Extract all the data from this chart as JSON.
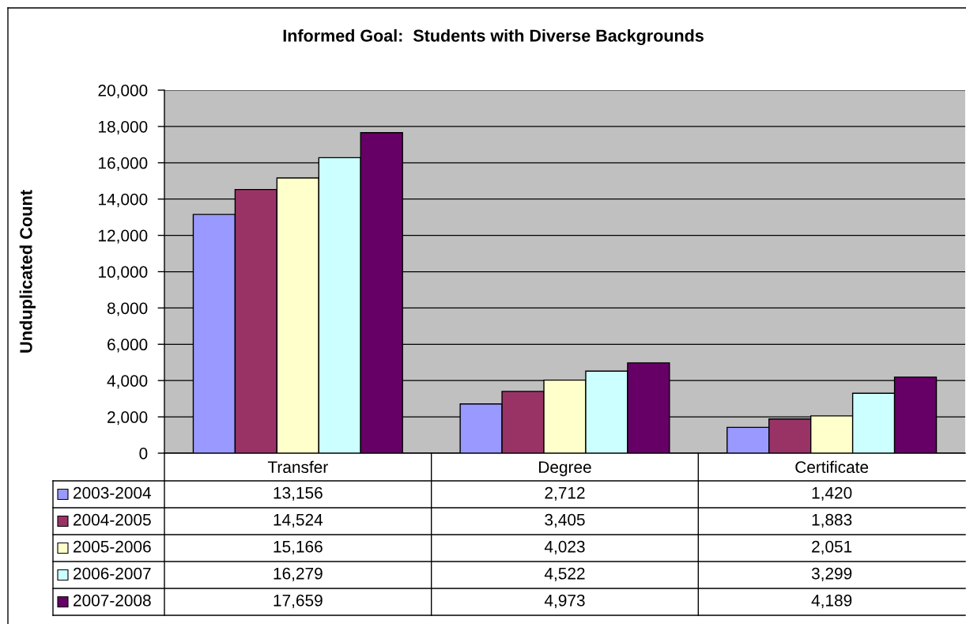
{
  "chart_data": {
    "type": "bar",
    "title": "Informed Goal:  Students with Diverse Backgrounds",
    "ylabel": "Unduplicated Count",
    "categories": [
      "Transfer",
      "Degree",
      "Certificate"
    ],
    "series": [
      {
        "name": "2003-2004",
        "color": "#9999ff",
        "values": [
          13156,
          2712,
          1420
        ],
        "value_labels": [
          "13,156",
          "2,712",
          "1,420"
        ]
      },
      {
        "name": "2004-2005",
        "color": "#993366",
        "values": [
          14524,
          3405,
          1883
        ],
        "value_labels": [
          "14,524",
          "3,405",
          "1,883"
        ]
      },
      {
        "name": "2005-2006",
        "color": "#ffffcc",
        "values": [
          15166,
          4023,
          2051
        ],
        "value_labels": [
          "15,166",
          "4,023",
          "2,051"
        ]
      },
      {
        "name": "2006-2007",
        "color": "#ccffff",
        "values": [
          16279,
          4522,
          3299
        ],
        "value_labels": [
          "16,279",
          "4,522",
          "3,299"
        ]
      },
      {
        "name": "2007-2008",
        "color": "#660066",
        "values": [
          17659,
          4973,
          4189
        ],
        "value_labels": [
          "17,659",
          "4,973",
          "4,189"
        ]
      }
    ],
    "ylim": [
      0,
      20000
    ],
    "yticks": [
      0,
      {
        "value": 2000,
        "label": "2,000"
      },
      {
        "value": 4000,
        "label": "4,000"
      },
      {
        "value": 6000,
        "label": "6,000"
      },
      {
        "value": 8000,
        "label": "8,000"
      },
      {
        "value": 10000,
        "label": "10,000"
      },
      {
        "value": 12000,
        "label": "12,000"
      },
      {
        "value": 14000,
        "label": "14,000"
      },
      {
        "value": 16000,
        "label": "16,000"
      },
      {
        "value": 18000,
        "label": "18,000"
      },
      {
        "value": 20000,
        "label": "20,000"
      }
    ],
    "grid": "y",
    "legend": "bottom left"
  }
}
